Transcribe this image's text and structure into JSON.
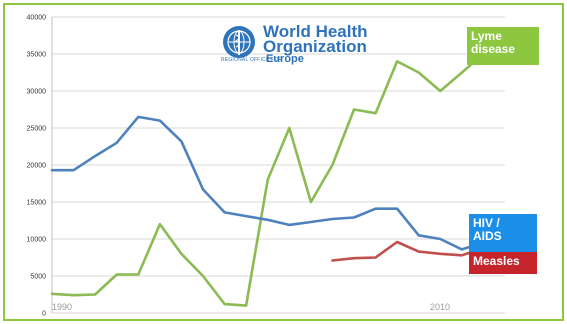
{
  "colors": {
    "frame": "#8dc63f",
    "lyme": "#8cbb54",
    "hiv": "#4f81bd",
    "measles": "#c0504d",
    "lyme_label_bg": "#8dc63f",
    "hiv_label_bg": "#1b8ee8",
    "measles_label_bg": "#c5252a",
    "who_blue": "#2f74bb"
  },
  "logo": {
    "name": "who-emblem-icon",
    "line1": "World Health",
    "line2": "Organization",
    "regional_office": "REGIONAL OFFICE FOR",
    "region": "Europe"
  },
  "labels": {
    "lyme": "Lyme disease",
    "hiv": "HIV / AIDS",
    "measles": "Measles"
  },
  "chart_data": {
    "type": "line",
    "ylim": [
      0,
      40000
    ],
    "y_ticks": [
      "0",
      "5000",
      "10000",
      "15000",
      "20000",
      "25000",
      "30000",
      "35000",
      "40000"
    ],
    "grid": "horizontal",
    "x_start_label": "1990",
    "x_end_label": "2010",
    "x": [
      1990,
      1991,
      1992,
      1993,
      1994,
      1995,
      1996,
      1997,
      1998,
      1999,
      2000,
      2001,
      2002,
      2003,
      2004,
      2005,
      2006,
      2007,
      2008,
      2009,
      2010,
      2011
    ],
    "series": [
      {
        "name": "Lyme disease",
        "color": "#8cbb54",
        "values": [
          2600,
          2400,
          2500,
          5200,
          5200,
          12000,
          8000,
          5000,
          1200,
          1000,
          18000,
          25000,
          15000,
          20000,
          27500,
          27000,
          34000,
          32500,
          30000,
          32500,
          35000,
          null
        ]
      },
      {
        "name": "HIV / AIDS",
        "color": "#4f81bd",
        "values": [
          19300,
          19300,
          21200,
          23000,
          26500,
          26000,
          23200,
          16700,
          13600,
          13100,
          12600,
          11900,
          12300,
          12700,
          12900,
          14100,
          14100,
          10500,
          10000,
          8600,
          9500,
          null
        ]
      },
      {
        "name": "Measles",
        "color": "#c0504d",
        "values": [
          null,
          null,
          null,
          null,
          null,
          null,
          null,
          null,
          null,
          null,
          null,
          null,
          null,
          7100,
          7400,
          7500,
          9600,
          8300,
          8000,
          7800,
          8800,
          null
        ]
      }
    ]
  }
}
